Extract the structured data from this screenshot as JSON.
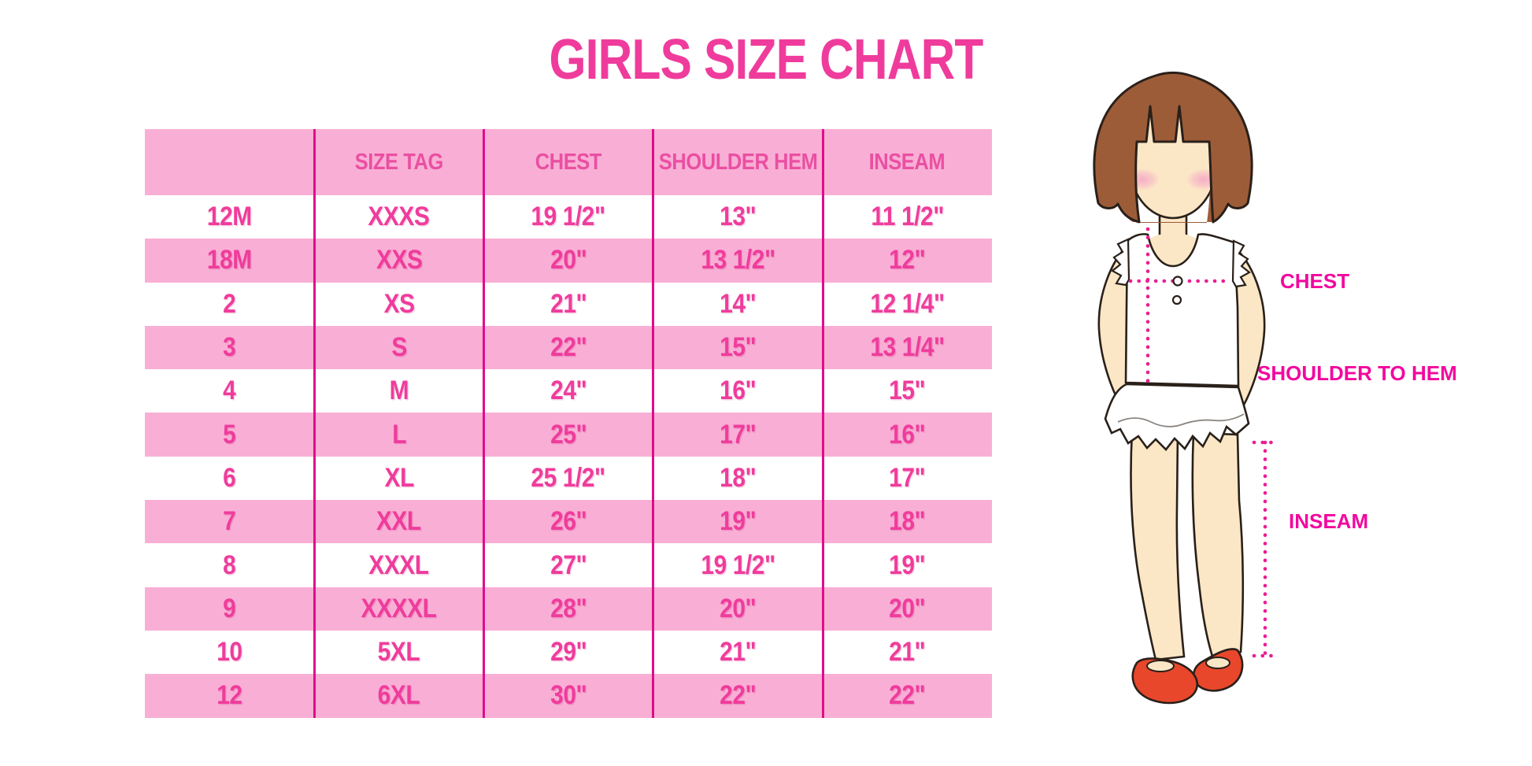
{
  "title": "GIRLS SIZE CHART",
  "colors": {
    "title": "#ef3c9c",
    "header_text": "#ea4fa2",
    "body_text": "#ef3c9c",
    "stripe": "#f9afd5",
    "line": "#e00c8b",
    "label": "#f2089e",
    "dotted": "#ec1c92",
    "hair": "#9d5c38",
    "skin": "#fbe7c6",
    "blush": "#f5a8c6",
    "shoe": "#e8472b",
    "outline": "#2a201a"
  },
  "chart_data": {
    "type": "table",
    "title": "GIRLS SIZE CHART",
    "columns": [
      "",
      "SIZE TAG",
      "CHEST",
      "SHOULDER HEM",
      "INSEAM"
    ],
    "rows": [
      [
        "12M",
        "XXXS",
        "19 1/2\"",
        "13\"",
        "11 1/2\""
      ],
      [
        "18M",
        "XXS",
        "20\"",
        "13 1/2\"",
        "12\""
      ],
      [
        "2",
        "XS",
        "21\"",
        "14\"",
        "12 1/4\""
      ],
      [
        "3",
        "S",
        "22\"",
        "15\"",
        "13 1/4\""
      ],
      [
        "4",
        "M",
        "24\"",
        "16\"",
        "15\""
      ],
      [
        "5",
        "L",
        "25\"",
        "17\"",
        "16\""
      ],
      [
        "6",
        "XL",
        "25 1/2\"",
        "18\"",
        "17\""
      ],
      [
        "7",
        "XXL",
        "26\"",
        "19\"",
        "18\""
      ],
      [
        "8",
        "XXXL",
        "27\"",
        "19 1/2\"",
        "19\""
      ],
      [
        "9",
        "XXXXL",
        "28\"",
        "20\"",
        "20\""
      ],
      [
        "10",
        "5XL",
        "29\"",
        "21\"",
        "21\""
      ],
      [
        "12",
        "6XL",
        "30\"",
        "22\"",
        "22\""
      ]
    ],
    "layout": {
      "striped": true,
      "stripe_pattern": "header pink, then data rows alternate white/pink starting white",
      "column_separators": true,
      "legend_position": "none",
      "grid": false
    }
  },
  "figure": {
    "chest_label": "CHEST",
    "shoulder_to_hem_label": "SHOULDER TO HEM",
    "inseam_label": "INSEAM"
  }
}
